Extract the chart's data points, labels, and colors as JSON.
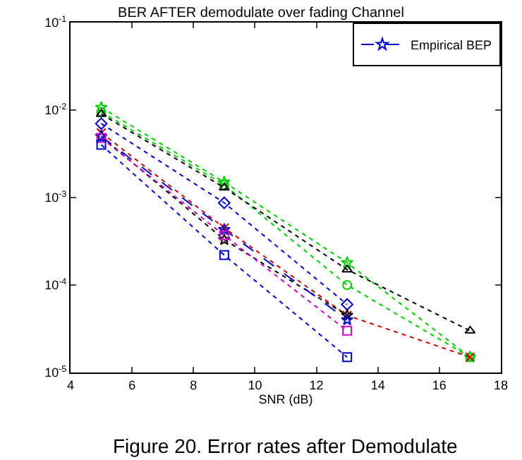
{
  "chart_data": {
    "type": "line",
    "title": "BER AFTER demodulate over fading Channel",
    "xlabel": "SNR (dB)",
    "x": [
      5,
      9,
      13,
      17
    ],
    "series": [
      {
        "color": "#00cc00",
        "marker": "star",
        "line_style": "dotted",
        "values": [
          0.0107,
          0.0015,
          0.00018,
          1.5e-05
        ]
      },
      {
        "color": "#00cc00",
        "marker": "circle",
        "line_style": "dotted",
        "values": [
          0.0095,
          0.0014,
          0.0001,
          1.5e-05
        ]
      },
      {
        "color": "#000000",
        "marker": "triangle",
        "line_style": "dotted",
        "values": [
          0.009,
          0.0013,
          0.00015,
          3e-05
        ]
      },
      {
        "color": "#0000cc",
        "marker": "diamond",
        "line_style": "dotted",
        "values": [
          0.007,
          0.00087,
          6e-05,
          null
        ]
      },
      {
        "color": "#cc0000",
        "marker": "cross",
        "line_style": "dotted",
        "values": [
          0.0055,
          0.00045,
          4.5e-05,
          1.5e-05
        ]
      },
      {
        "color": "#000000",
        "marker": "star",
        "line_style": "dotted",
        "values": [
          0.005,
          0.00033,
          4.5e-05,
          null
        ]
      },
      {
        "name": "Empirical BEP",
        "color": "#0000cc",
        "marker": "star",
        "line_style": "dashed",
        "values": [
          0.005,
          0.00043,
          4e-05,
          null
        ]
      },
      {
        "color": "#cc00cc",
        "marker": "square",
        "line_style": "dotted",
        "values": [
          0.0048,
          0.00037,
          3e-05,
          null
        ]
      },
      {
        "color": "#0000cc",
        "marker": "square",
        "line_style": "dotted",
        "values": [
          0.004,
          0.00022,
          1.5e-05,
          null
        ]
      }
    ],
    "log": "y",
    "xlim": [
      4,
      18
    ],
    "xticks": [
      4,
      6,
      8,
      10,
      12,
      14,
      16,
      18
    ],
    "ylim": [
      1e-05,
      0.1
    ],
    "yticks": [
      {
        "value": 1e-05,
        "label": "10$^{-5}$"
      },
      {
        "value": 0.0001,
        "label": "10$^{-4}$"
      },
      {
        "value": 0.001,
        "label": "10$^{-3}$"
      },
      {
        "value": 0.01,
        "label": "10$^{-2}$"
      },
      {
        "value": 0.1,
        "label": "10$^{-1}$"
      }
    ],
    "legend": "top right",
    "annotations": [
      "Figure 20. Error rates after Demodulate"
    ]
  }
}
